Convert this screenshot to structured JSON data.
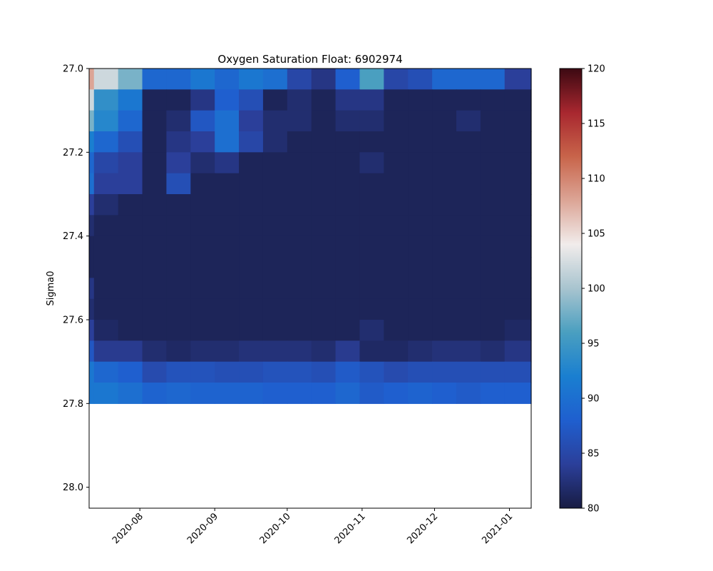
{
  "chart_data": {
    "type": "heatmap",
    "title": "Oxygen Saturation Float: 6902974",
    "xlabel": "",
    "ylabel": "Sigma0",
    "x_range": [
      "2020-07-11",
      "2021-01-10"
    ],
    "x_ticks": [
      {
        "date": "2020-08-01",
        "label": "2020-08"
      },
      {
        "date": "2020-09-01",
        "label": "2020-09"
      },
      {
        "date": "2020-10-01",
        "label": "2020-10"
      },
      {
        "date": "2020-11-01",
        "label": "2020-11"
      },
      {
        "date": "2020-12-01",
        "label": "2020-12"
      },
      {
        "date": "2021-01-01",
        "label": "2021-01"
      }
    ],
    "ylim": [
      28.05,
      27.0
    ],
    "y_ticks": [
      {
        "value": 27.0,
        "label": "27.0"
      },
      {
        "value": 27.2,
        "label": "27.2"
      },
      {
        "value": 27.4,
        "label": "27.4"
      },
      {
        "value": 27.6,
        "label": "27.6"
      },
      {
        "value": 27.8,
        "label": "27.8"
      },
      {
        "value": 28.0,
        "label": "28.0"
      }
    ],
    "colorbar": {
      "vmin": 80,
      "vmax": 120,
      "ticks": [
        "80",
        "85",
        "90",
        "95",
        "100",
        "105",
        "110",
        "115",
        "120"
      ],
      "colormap": "balance",
      "stops": [
        "#181c43",
        "#2b3f9a",
        "#1f5fcf",
        "#1a7fd0",
        "#4a9fc0",
        "#a8c4cf",
        "#f1eceb",
        "#dca596",
        "#c8644a",
        "#a8272f",
        "#3c0912"
      ]
    },
    "y_edges": [
      27.0,
      27.05,
      27.1,
      27.15,
      27.2,
      27.25,
      27.3,
      27.35,
      27.4,
      27.45,
      27.5,
      27.55,
      27.6,
      27.65,
      27.7,
      27.75,
      27.8
    ],
    "x_edges": [
      "2020-07-11",
      "2020-07-13",
      "2020-07-23",
      "2020-08-02",
      "2020-08-12",
      "2020-08-22",
      "2020-09-01",
      "2020-09-11",
      "2020-09-21",
      "2020-10-01",
      "2020-10-11",
      "2020-10-21",
      "2020-10-31",
      "2020-11-10",
      "2020-11-20",
      "2020-11-30",
      "2020-12-10",
      "2020-12-20",
      "2020-12-30",
      "2021-01-10"
    ],
    "values": [
      [
        108,
        102,
        98,
        89,
        89,
        91,
        89,
        91,
        90,
        85,
        83,
        88,
        96,
        85,
        86,
        89,
        89,
        89,
        84
      ],
      [
        102,
        94,
        91,
        81,
        81,
        83,
        88,
        86,
        81,
        82,
        81,
        83,
        83,
        81,
        81,
        81,
        81,
        81,
        81
      ],
      [
        98,
        93,
        89,
        81,
        82,
        87,
        90,
        84,
        82,
        82,
        81,
        82,
        82,
        81,
        81,
        81,
        82,
        81,
        81
      ],
      [
        92,
        89,
        86,
        81,
        83,
        84,
        90,
        85,
        82,
        81,
        81,
        81,
        81,
        81,
        81,
        81,
        81,
        81,
        81
      ],
      [
        89,
        85,
        84,
        81,
        84,
        82,
        83,
        81,
        81,
        81,
        81,
        81,
        82,
        81,
        81,
        81,
        81,
        81,
        81
      ],
      [
        90,
        84,
        84,
        81,
        86,
        81,
        81,
        81,
        81,
        81,
        81,
        81,
        81,
        81,
        81,
        81,
        81,
        81,
        81
      ],
      [
        84,
        82,
        81,
        81,
        81,
        81,
        81,
        81,
        81,
        81,
        81,
        81,
        81,
        81,
        81,
        81,
        81,
        81,
        81
      ],
      [
        82,
        81,
        81,
        81,
        81,
        81,
        81,
        81,
        81,
        81,
        81,
        81,
        81,
        81,
        81,
        81,
        81,
        81,
        81
      ],
      [
        81,
        81,
        81,
        81,
        81,
        81,
        81,
        81,
        81,
        81,
        81,
        81,
        81,
        81,
        81,
        81,
        81,
        81,
        81
      ],
      [
        81,
        81,
        81,
        81,
        81,
        81,
        81,
        81,
        81,
        81,
        81,
        81,
        81,
        81,
        81,
        81,
        81,
        81,
        81
      ],
      [
        83,
        81,
        81,
        81,
        81,
        81,
        81,
        81,
        81,
        81,
        81,
        81,
        81,
        81,
        81,
        81,
        81,
        81,
        81
      ],
      [
        82,
        81,
        81,
        81,
        81,
        81,
        81,
        81,
        81,
        81,
        81,
        81,
        81,
        81,
        81,
        81,
        81,
        81,
        81
      ],
      [
        84,
        81.5,
        81,
        81,
        81,
        81,
        81,
        81,
        81,
        81,
        81,
        81,
        82,
        81,
        81,
        81,
        81,
        81,
        81.5
      ],
      [
        87,
        83.5,
        83.5,
        82,
        81.5,
        82,
        82,
        82.5,
        82.5,
        82.5,
        82,
        83.5,
        81.5,
        81.5,
        82,
        82.5,
        82.5,
        82,
        83
      ],
      [
        91,
        89,
        88,
        85.5,
        86.5,
        86.5,
        86,
        86,
        86.5,
        86.5,
        86,
        87.5,
        86.5,
        85.5,
        86,
        86,
        86,
        86,
        86
      ],
      [
        91,
        91,
        90,
        88.5,
        89,
        88.5,
        88.5,
        88.5,
        88,
        88,
        88,
        89,
        87.5,
        88,
        88.5,
        88,
        87.5,
        88,
        88
      ]
    ]
  }
}
